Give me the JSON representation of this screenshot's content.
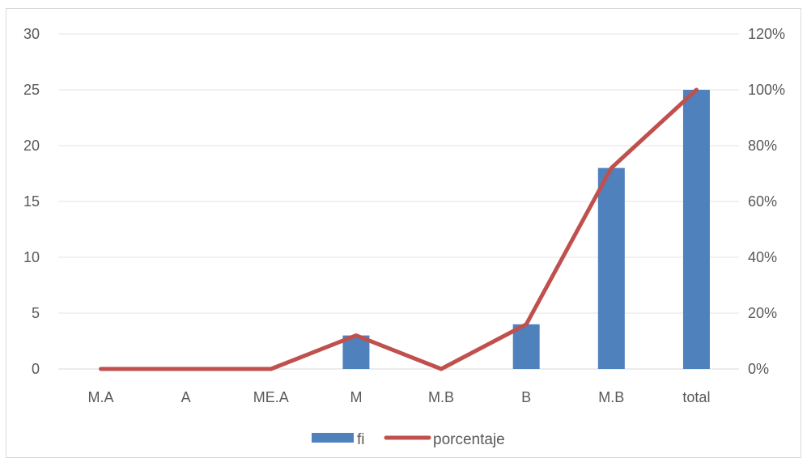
{
  "chart_data": {
    "type": "bar",
    "categories": [
      "M.A",
      "A",
      "ME.A",
      "M",
      "M.B",
      "B",
      "M.B",
      "total"
    ],
    "series": [
      {
        "name": "fi",
        "type": "bar",
        "axis": "left",
        "color": "#4F81BD",
        "values": [
          0,
          0,
          0,
          3,
          0,
          4,
          18,
          25
        ]
      },
      {
        "name": "porcentaje",
        "type": "line",
        "axis": "right",
        "color": "#C0504D",
        "values": [
          0,
          0,
          0,
          0.12,
          0,
          0.16,
          0.72,
          1.0
        ]
      }
    ],
    "y_left": {
      "min": 0,
      "max": 30,
      "step": 5,
      "tick_labels": [
        "0",
        "5",
        "10",
        "15",
        "20",
        "25",
        "30"
      ]
    },
    "y_right": {
      "min": 0,
      "max": 1.2,
      "step": 0.2,
      "tick_labels": [
        "0%",
        "20%",
        "40%",
        "60%",
        "80%",
        "100%",
        "120%"
      ]
    },
    "grid": true,
    "legend_position": "bottom",
    "legend": [
      "fi",
      "porcentaje"
    ]
  }
}
